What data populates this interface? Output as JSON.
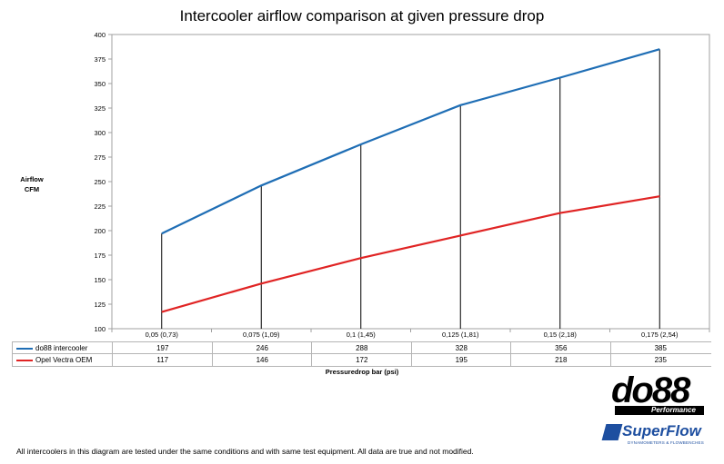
{
  "chart_data": {
    "type": "line",
    "title": "Intercooler airflow comparison at given pressure drop",
    "ylabel_lines": [
      "Airflow",
      "CFM"
    ],
    "xlabel": "Pressuredrop bar (psi)",
    "categories": [
      "0,05 (0,73)",
      "0,075 (1,09)",
      "0,1 (1,45)",
      "0,125 (1,81)",
      "0,15 (2,18)",
      "0,175 (2,54)"
    ],
    "yticks": [
      "100",
      "125",
      "150",
      "175",
      "200",
      "225",
      "250",
      "275",
      "300",
      "325",
      "350",
      "375",
      "400"
    ],
    "ylim": [
      100,
      400
    ],
    "grid": "vertical drop lines",
    "legend_placement": "data table below plot",
    "series": [
      {
        "name": "do88 intercooler",
        "values": [
          197,
          246,
          288,
          328,
          356,
          385
        ],
        "color": "#1f6eb5"
      },
      {
        "name": "Opel Vectra OEM",
        "values": [
          117,
          146,
          172,
          195,
          218,
          235
        ],
        "color": "#e02424"
      }
    ]
  },
  "footnote": "All intercoolers in this diagram are tested under the same conditions and with same test equipment. All data are true and not modified.",
  "logos": {
    "do88_text": "do88",
    "do88_sub": "Performance",
    "superflow_text": "SuperFlow",
    "superflow_sub": "DYNAMOMETERS & FLOWBENCHES"
  }
}
